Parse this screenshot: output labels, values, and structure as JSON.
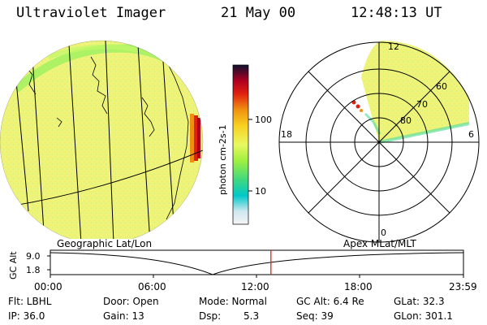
{
  "header": {
    "instrument": "Ultraviolet Imager",
    "date": "21 May 00",
    "time": "12:48:13 UT"
  },
  "colorbar": {
    "unit_label": "photon cm-2s-1",
    "ticks": [
      "100",
      "10"
    ],
    "colors": [
      "#e0e0e0",
      "#00c8c8",
      "#60e860",
      "#e8f860",
      "#f8d020",
      "#f09010",
      "#e03010",
      "#b00010",
      "#202050"
    ]
  },
  "polar_plot": {
    "mlt_labels": {
      "top": "12",
      "left": "18",
      "right": "6",
      "bottom": "0"
    },
    "lat_labels": [
      "60",
      "70",
      "80"
    ]
  },
  "timeline": {
    "left_title": "Geographic Lat/Lon",
    "right_title": "Apex MLat/MLT",
    "axis_label": "GC Alt",
    "y_top": "9.0",
    "y_bottom": "1.8",
    "time_ticks": [
      "00:00",
      "06:00",
      "12:00",
      "18:00",
      "23:59"
    ],
    "current_time_fraction": 0.534
  },
  "status": {
    "filter": "Flt: LBHL",
    "door": "Door: Open",
    "mode": "Mode: Normal",
    "gc_alt": "GC Alt: 6.4 Re",
    "glat": "GLat:   32.3",
    "ip": "IP: 36.0",
    "gain": "Gain: 13",
    "dsp_label": "Dsp:",
    "dsp_value": "5.3",
    "seq": "Seq: 39",
    "glon": "GLon: 301.1"
  }
}
